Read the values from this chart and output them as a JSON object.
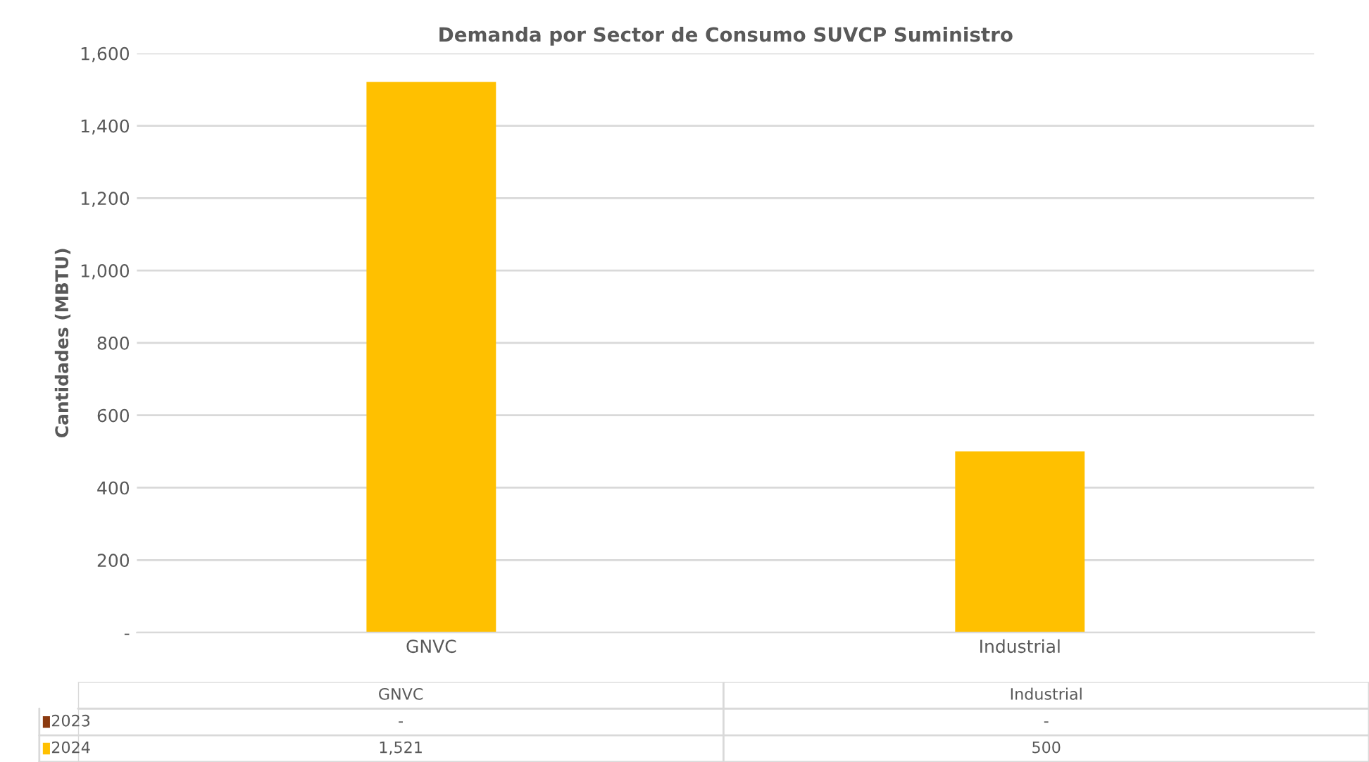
{
  "chart_data": {
    "type": "bar",
    "title": "Demanda por Sector de Consumo SUVCP Suministro",
    "ylabel": "Cantidades (MBTU)",
    "categories": [
      "GNVC",
      "Industrial"
    ],
    "series": [
      {
        "name": "2023",
        "color": "#8b3a0f",
        "values": [
          null,
          null
        ],
        "value_labels": [
          "-",
          "-"
        ]
      },
      {
        "name": "2024",
        "color": "#ffc000",
        "values": [
          1521,
          500
        ],
        "value_labels": [
          "1,521",
          "500"
        ]
      }
    ],
    "ylim": [
      0,
      1600
    ],
    "yticks": [
      {
        "value": 0,
        "label": "-"
      },
      200,
      400,
      600,
      800,
      {
        "value": 1000,
        "label": "1,000"
      },
      {
        "value": 1200,
        "label": "1,200"
      },
      {
        "value": 1400,
        "label": "1,400"
      },
      {
        "value": 1600,
        "label": "1,600"
      }
    ],
    "grid": "y",
    "legend": "bottom"
  }
}
